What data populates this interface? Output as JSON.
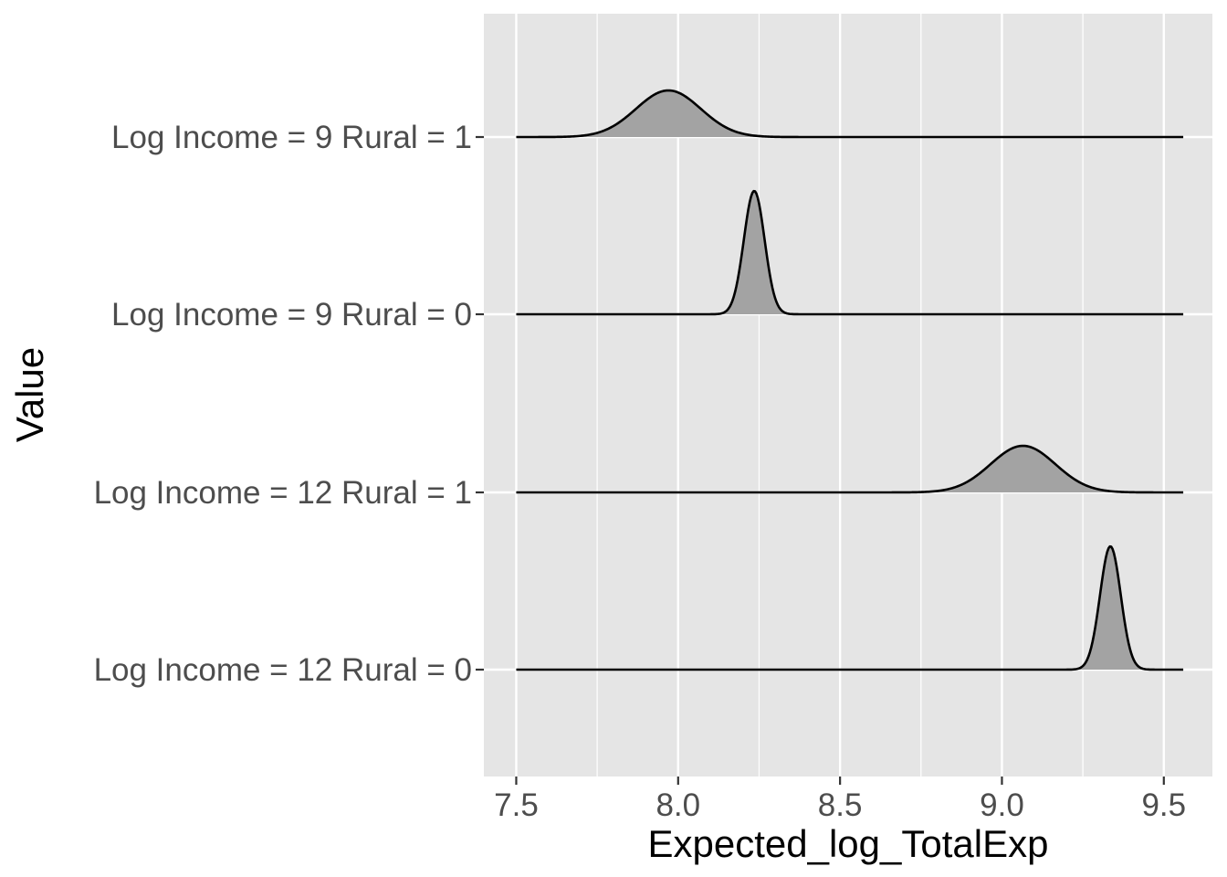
{
  "chart_data": {
    "type": "ridgeline",
    "xlabel": "Expected_log_TotalExp",
    "ylabel": "Value",
    "xlim": [
      7.4,
      9.65
    ],
    "x_ticks": [
      "7.5",
      "8.0",
      "8.5",
      "9.0",
      "9.5"
    ],
    "grid": true,
    "legend": "none",
    "colors": {
      "panel": "#e5e5e5",
      "grid": "#ffffff",
      "fill": "#a3a3a3",
      "line": "#000000",
      "tick_label": "#4d4d4d"
    },
    "series": [
      {
        "name": "Log Income = 9 Rural = 1",
        "x_range": [
          7.5,
          9.56
        ],
        "peak_density": 3.4,
        "components": [
          {
            "mean": 7.97,
            "sd": 0.1,
            "weight": 1.0
          }
        ]
      },
      {
        "name": "Log Income = 9 Rural = 0",
        "x_range": [
          7.5,
          9.56
        ],
        "peak_density": 9.0,
        "components": [
          {
            "mean": 8.235,
            "sd": 0.032,
            "weight": 1.0
          }
        ]
      },
      {
        "name": "Log Income = 12 Rural = 1",
        "x_range": [
          7.5,
          9.56
        ],
        "peak_density": 3.4,
        "components": [
          {
            "mean": 9.065,
            "sd": 0.1,
            "weight": 1.0
          }
        ]
      },
      {
        "name": "Log Income = 12 Rural = 0",
        "x_range": [
          7.5,
          9.56
        ],
        "peak_density": 9.0,
        "components": [
          {
            "mean": 9.335,
            "sd": 0.032,
            "weight": 1.0
          }
        ]
      }
    ]
  }
}
